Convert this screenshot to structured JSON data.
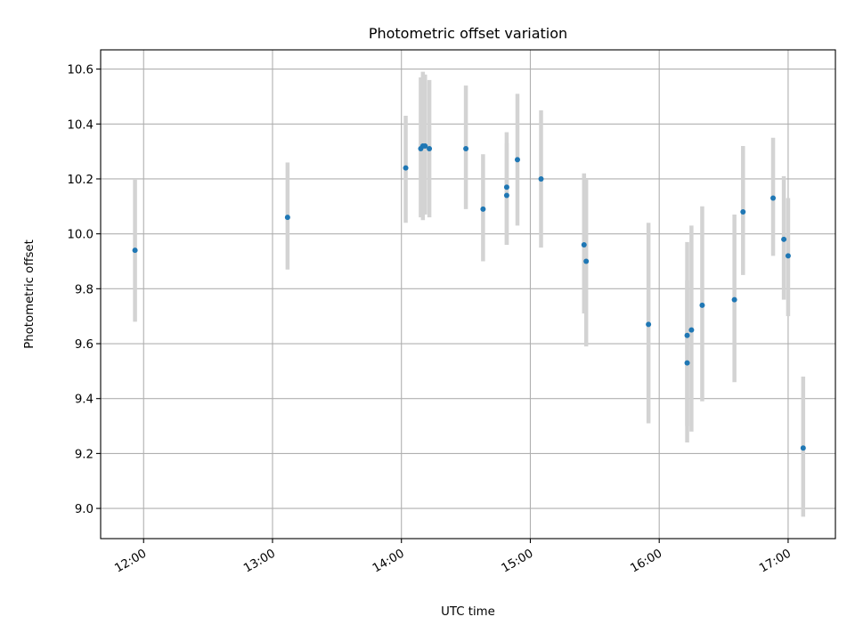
{
  "chart_data": {
    "type": "scatter",
    "title": "Photometric offset variation",
    "xlabel": "UTC time",
    "ylabel": "Photometric offset",
    "x_axis_type": "time",
    "xlim": [
      "11:40",
      "17:22"
    ],
    "ylim": [
      8.89,
      10.67
    ],
    "x_ticks": [
      "12:00",
      "13:00",
      "14:00",
      "15:00",
      "16:00",
      "17:00"
    ],
    "y_ticks": [
      "9.0",
      "9.2",
      "9.4",
      "9.6",
      "9.8",
      "10.0",
      "10.2",
      "10.4",
      "10.6"
    ],
    "x_tick_rotation_deg": 30,
    "grid": true,
    "legend": "none",
    "colors": {
      "marker": "#1f77b4",
      "errorbar": "#d3d3d3",
      "grid": "#b0b0b0"
    },
    "series": [
      {
        "points": [
          {
            "x": "11:56",
            "y": 9.94,
            "lo": 9.68,
            "hi": 10.2
          },
          {
            "x": "13:07",
            "y": 10.06,
            "lo": 9.87,
            "hi": 10.26
          },
          {
            "x": "14:02",
            "y": 10.24,
            "lo": 10.04,
            "hi": 10.43
          },
          {
            "x": "14:09",
            "y": 10.31,
            "lo": 10.06,
            "hi": 10.57
          },
          {
            "x": "14:10",
            "y": 10.32,
            "lo": 10.05,
            "hi": 10.59
          },
          {
            "x": "14:11",
            "y": 10.32,
            "lo": 10.07,
            "hi": 10.58
          },
          {
            "x": "14:13",
            "y": 10.31,
            "lo": 10.06,
            "hi": 10.56
          },
          {
            "x": "14:30",
            "y": 10.31,
            "lo": 10.09,
            "hi": 10.54
          },
          {
            "x": "14:38",
            "y": 10.09,
            "lo": 9.9,
            "hi": 10.29
          },
          {
            "x": "14:49",
            "y": 10.17,
            "lo": 9.96,
            "hi": 10.37
          },
          {
            "x": "14:49",
            "y": 10.14,
            "lo": 9.96,
            "hi": 10.33
          },
          {
            "x": "14:54",
            "y": 10.27,
            "lo": 10.03,
            "hi": 10.51
          },
          {
            "x": "15:05",
            "y": 10.2,
            "lo": 9.95,
            "hi": 10.45
          },
          {
            "x": "15:25",
            "y": 9.96,
            "lo": 9.71,
            "hi": 10.22
          },
          {
            "x": "15:26",
            "y": 9.9,
            "lo": 9.59,
            "hi": 10.2
          },
          {
            "x": "15:55",
            "y": 9.67,
            "lo": 9.31,
            "hi": 10.04
          },
          {
            "x": "16:13",
            "y": 9.63,
            "lo": 9.3,
            "hi": 9.97
          },
          {
            "x": "16:13",
            "y": 9.53,
            "lo": 9.24,
            "hi": 9.83
          },
          {
            "x": "16:15",
            "y": 9.65,
            "lo": 9.28,
            "hi": 10.03
          },
          {
            "x": "16:20",
            "y": 9.74,
            "lo": 9.39,
            "hi": 10.1
          },
          {
            "x": "16:35",
            "y": 9.76,
            "lo": 9.46,
            "hi": 10.07
          },
          {
            "x": "16:39",
            "y": 10.08,
            "lo": 9.85,
            "hi": 10.32
          },
          {
            "x": "16:53",
            "y": 10.13,
            "lo": 9.92,
            "hi": 10.35
          },
          {
            "x": "16:58",
            "y": 9.98,
            "lo": 9.76,
            "hi": 10.21
          },
          {
            "x": "17:00",
            "y": 9.92,
            "lo": 9.7,
            "hi": 10.13
          },
          {
            "x": "17:07",
            "y": 9.22,
            "lo": 8.97,
            "hi": 9.48
          }
        ]
      }
    ]
  }
}
